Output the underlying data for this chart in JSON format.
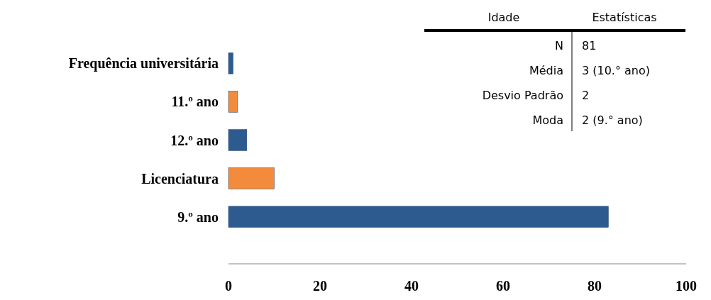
{
  "chart_data": {
    "type": "bar",
    "orientation": "horizontal",
    "categories": [
      "Frequência universitária",
      "11.º ano",
      "12.º ano",
      "Licenciatura",
      "9.º ano"
    ],
    "values": [
      1,
      2,
      4,
      10,
      83
    ],
    "colors": [
      "#2e5b8f",
      "#f28c3c",
      "#2e5b8f",
      "#f28c3c",
      "#2e5b8f"
    ],
    "xlim": [
      0,
      100
    ],
    "xticks": [
      0,
      20,
      40,
      60,
      80,
      100
    ],
    "annotations": [
      "Idade",
      "Estatísticas",
      "N",
      "81",
      "Média",
      "3 (10.° ano)",
      "Desvio Padrão",
      "2",
      "Moda",
      "2 (9.° ano)"
    ]
  }
}
